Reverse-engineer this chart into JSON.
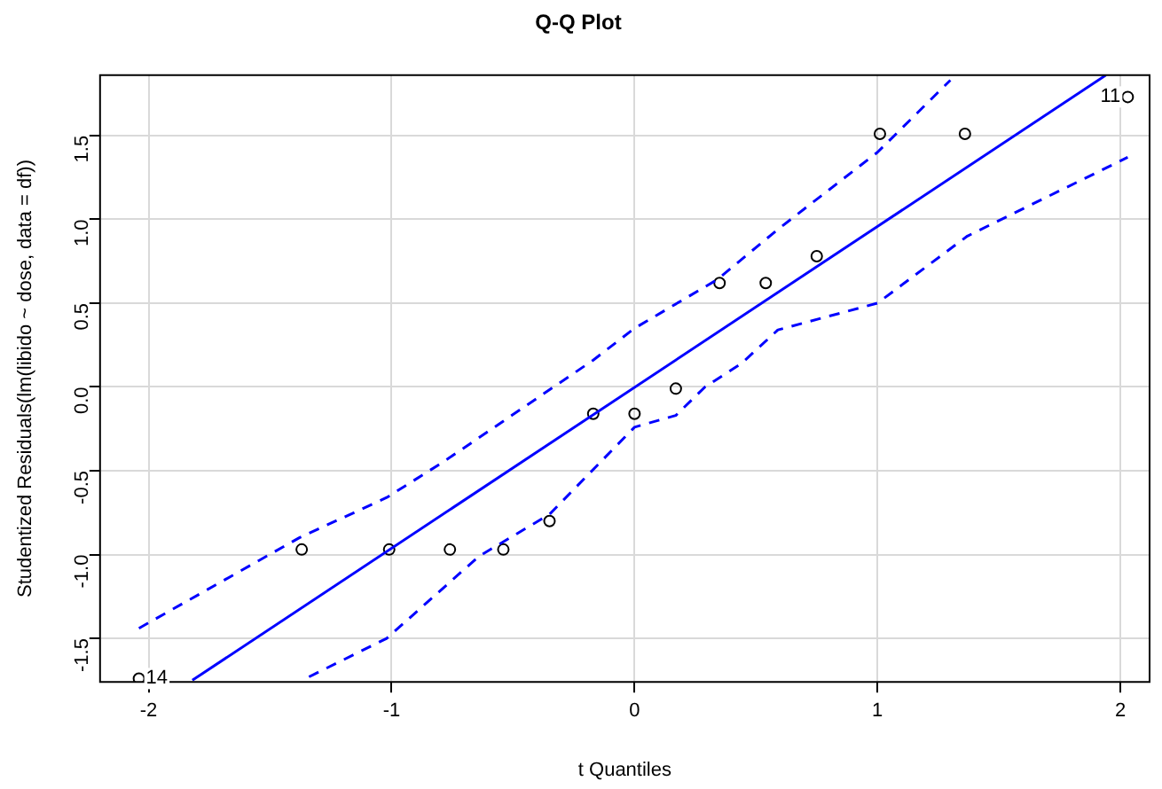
{
  "chart_data": {
    "type": "scatter",
    "title": "Q-Q Plot",
    "xlabel": "t Quantiles",
    "ylabel": "Studentized Residuals(lm(libido ~ dose, data = df))",
    "xlim": [
      -2.2,
      2.12
    ],
    "ylim": [
      -1.76,
      1.86
    ],
    "xticks": [
      -2,
      -1,
      0,
      1,
      2
    ],
    "yticks": [
      {
        "value": -1.5,
        "label": "-1.5"
      },
      {
        "value": -1,
        "label": "-1.0"
      },
      {
        "value": -0.5,
        "label": "-0.5"
      },
      {
        "value": 0,
        "label": "0.0"
      },
      {
        "value": 0.5,
        "label": "0.5"
      },
      {
        "value": 1,
        "label": "1.0"
      },
      {
        "value": 1.5,
        "label": "1.5"
      }
    ],
    "grid": true,
    "legend": false,
    "series": [
      {
        "type": "line",
        "color": "#0000ff",
        "line_style": "dashed",
        "x": [
          -2.04,
          -1.38,
          -1.02,
          -0.79,
          -0.17,
          0,
          0.34,
          0.59,
          1.0,
          1.3
        ],
        "values": [
          -1.44,
          -0.9,
          -0.66,
          -0.45,
          0.16,
          0.35,
          0.64,
          0.94,
          1.4,
          1.83
        ]
      },
      {
        "type": "line",
        "color": "#0000ff",
        "line_style": "dashed",
        "x": [
          -1.34,
          -1.02,
          -0.64,
          -0.35,
          0,
          0.17,
          0.29,
          0.44,
          0.59,
          1.0,
          1.37,
          2.03
        ],
        "values": [
          -1.73,
          -1.5,
          -1.01,
          -0.76,
          -0.24,
          -0.17,
          0,
          0.14,
          0.34,
          0.5,
          0.9,
          1.37
        ]
      },
      {
        "type": "line",
        "color": "#0000ff",
        "line_style": "solid",
        "x": [
          -1.82,
          1.94
        ],
        "values": [
          -1.75,
          1.86
        ]
      },
      {
        "color": "#000000",
        "marker": "circle",
        "x": [
          -2.04,
          -1.37,
          -1.01,
          -0.76,
          -0.54,
          -0.35,
          -0.17,
          0,
          0.17,
          0.35,
          0.54,
          0.75,
          1.01,
          1.36,
          2.03
        ],
        "values": [
          -1.74,
          -0.97,
          -0.97,
          -0.97,
          -0.97,
          -0.8,
          -0.16,
          -0.16,
          -0.01,
          0.62,
          0.62,
          0.78,
          1.51,
          1.51,
          1.73
        ]
      }
    ],
    "annotations": [
      {
        "text": "14",
        "x": -2.04,
        "y": -1.74
      },
      {
        "text": "11",
        "x": 2.03,
        "y": 1.73
      }
    ]
  }
}
